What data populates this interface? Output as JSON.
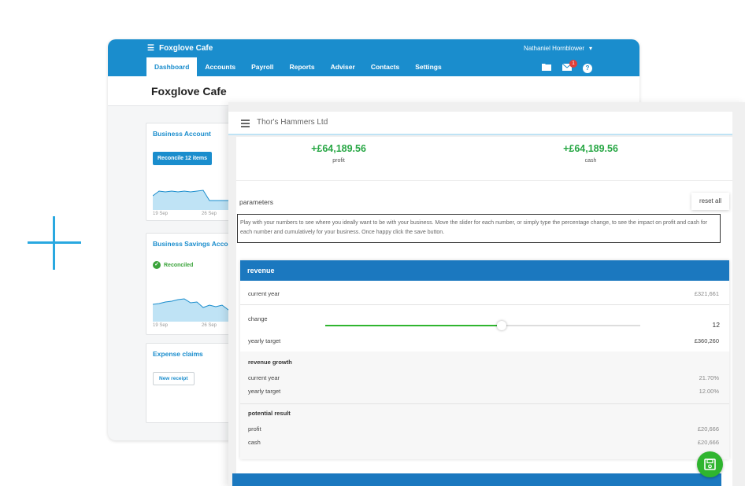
{
  "back_window": {
    "org_name": "Foxglove Cafe",
    "user_name": "Nathaniel Hornblower",
    "nav_tabs": [
      "Dashboard",
      "Accounts",
      "Payroll",
      "Reports",
      "Adviser",
      "Contacts",
      "Settings"
    ],
    "active_tab": "Dashboard",
    "mail_badge": "1",
    "page_title": "Foxglove Cafe",
    "business_account": {
      "title": "Business Account",
      "button": "Reconcile 12 items",
      "x_labels": [
        "19 Sep",
        "26 Sep"
      ]
    },
    "savings_account": {
      "title": "Business Savings Acco",
      "status": "Reconciled",
      "x_labels": [
        "19 Sep",
        "26 Sep"
      ]
    },
    "expense_claims": {
      "title": "Expense claims",
      "button": "New receipt"
    }
  },
  "front_window": {
    "company": "Thor's Hammers Ltd",
    "kpis": [
      {
        "value": "+£64,189.56",
        "label": "profit"
      },
      {
        "value": "+£64,189.56",
        "label": "cash"
      }
    ],
    "parameters_label": "parameters",
    "reset_label": "reset all",
    "help_text": "Play with your numbers to see where you ideally want to be with your business. Move the slider for each number, or simply type the percentage change, to see the impact on profit and cash for each number and cumulatively for your business. Once happy click the save button.",
    "revenue": {
      "title": "revenue",
      "current_year_label": "current year",
      "current_year_value": "£321,661",
      "change_label": "change",
      "change_value": "12",
      "slider_fraction": 0.56,
      "yearly_target_label": "yearly target",
      "yearly_target_value": "£360,260",
      "growth_title": "revenue growth",
      "growth_current_label": "current year",
      "growth_current_value": "21.70%",
      "growth_target_label": "yearly target",
      "growth_target_value": "12.00%",
      "result_title": "potential result",
      "profit_label": "profit",
      "profit_value": "£20,666",
      "cash_label": "cash",
      "cash_value": "£20,666"
    }
  },
  "colors": {
    "brand_blue": "#1a8dcd",
    "panel_blue": "#1b78bf",
    "positive_green": "#28a745",
    "slider_green": "#2fb52f"
  }
}
